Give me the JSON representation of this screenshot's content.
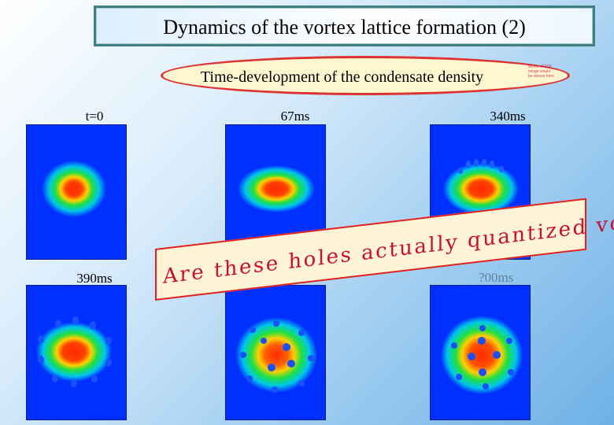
{
  "title": "Dynamics of the vortex lattice formation (2)",
  "subtitle": "Time-development of the condensate density",
  "stamp_lines": [
    "Movie of PDF",
    "image would",
    "be shown here"
  ],
  "labels": {
    "t0": "t=0",
    "t67": "67ms",
    "t340": "340ms",
    "t390": "390ms",
    "t_hidden": "?00ms"
  },
  "banner": "Are these holes actually quantized vortices?",
  "colors": {
    "panel_background": "#0030ff",
    "title_border": "#3f7f7f",
    "oval_border": "#dd3333",
    "banner_text": "#c8102e"
  }
}
